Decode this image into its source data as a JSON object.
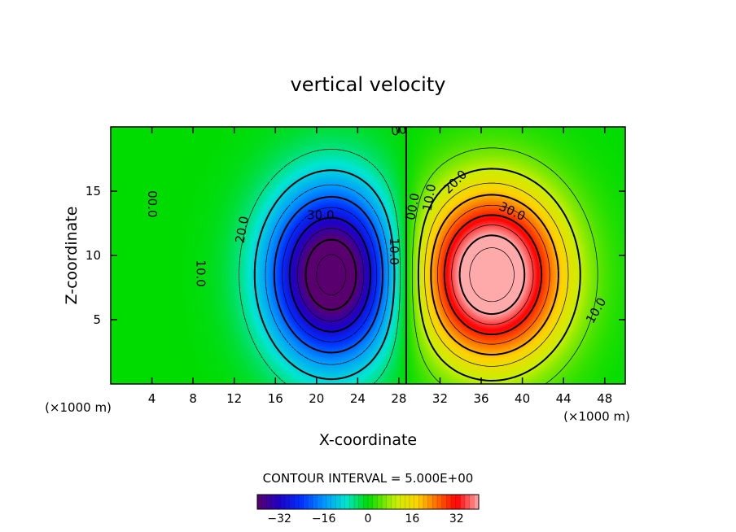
{
  "chart_data": {
    "type": "heatmap",
    "title": "vertical velocity",
    "xlabel": "X-coordinate",
    "ylabel": "Z-coordinate",
    "x_unit": "(×1000 m)",
    "z_unit": "(×1000 m)",
    "xlim": [
      0,
      50
    ],
    "ylim": [
      0,
      20
    ],
    "x_ticks": [
      4,
      8,
      12,
      16,
      20,
      24,
      28,
      32,
      36,
      40,
      44,
      48
    ],
    "y_ticks": [
      5,
      10,
      15
    ],
    "contour_interval_text": "CONTOUR INTERVAL =  5.000E+00",
    "colorbar": {
      "range": [
        -40,
        40
      ],
      "ticks": [
        -32,
        -16,
        0,
        16,
        32
      ]
    },
    "contour_labels": [
      {
        "text": "00.0",
        "x": 4.0,
        "z": 14.0,
        "angle": 90
      },
      {
        "text": "10.0",
        "x": 8.7,
        "z": 8.6,
        "angle": 90
      },
      {
        "text": "20.0",
        "x": 12.8,
        "z": 12.0,
        "angle": -80
      },
      {
        "text": "30.0",
        "x": 20.4,
        "z": 13.1,
        "angle": 0
      },
      {
        "text": "10.0",
        "x": 27.5,
        "z": 10.3,
        "angle": 90
      },
      {
        "text": "00.0",
        "x": 29.4,
        "z": 13.8,
        "angle": -80
      },
      {
        "text": "10.0",
        "x": 31.0,
        "z": 14.5,
        "angle": -80
      },
      {
        "text": "20.0",
        "x": 33.5,
        "z": 15.7,
        "angle": -45
      },
      {
        "text": "30.0",
        "x": 39.0,
        "z": 13.4,
        "angle": 25
      },
      {
        "text": "10.0",
        "x": 47.2,
        "z": 5.7,
        "angle": -60
      },
      {
        "text": "00",
        "x": 28.0,
        "z": 19.7,
        "angle": -10
      }
    ],
    "field": {
      "model": "two gaussian cells",
      "cells": [
        {
          "sign": "downdraft",
          "peak": -48,
          "x_center": 21.5,
          "z_center": 8.5
        },
        {
          "sign": "updraft",
          "peak": 50,
          "x_center": 37.0,
          "z_center": 8.5
        }
      ]
    }
  }
}
